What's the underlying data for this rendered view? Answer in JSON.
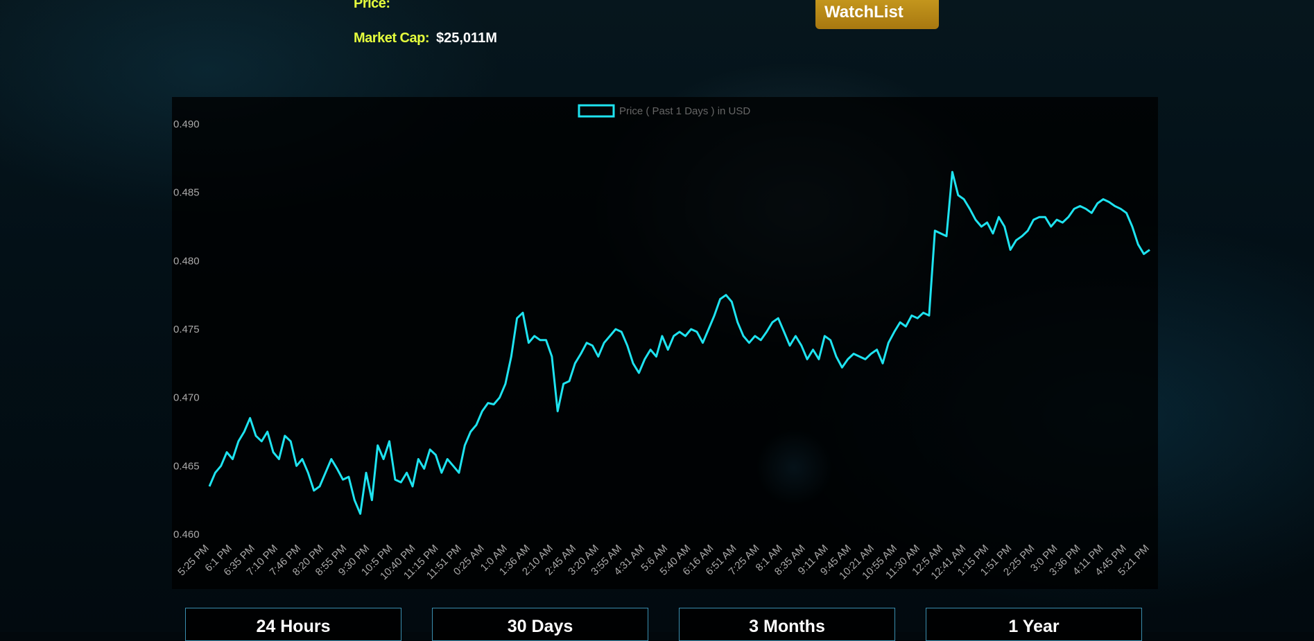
{
  "header": {
    "price_label": "Price:",
    "price_value": "",
    "market_cap_label": "Market Cap:",
    "market_cap_value": "$25,011M",
    "watchlist_label": "WatchList"
  },
  "range_buttons": [
    "24 Hours",
    "30 Days",
    "3 Months",
    "1 Year"
  ],
  "colors": {
    "line": "#1ee3f0",
    "label": "#e6ff3d",
    "button": "#b8860b"
  },
  "chart_data": {
    "type": "line",
    "legend": "Price ( Past 1 Days ) in USD",
    "legend_position": "top-center",
    "ylim": [
      0.46,
      0.49
    ],
    "yticks": [
      "0.490",
      "0.485",
      "0.480",
      "0.475",
      "0.470",
      "0.465",
      "0.460"
    ],
    "xticks": [
      "5:25 PM",
      "6:1 PM",
      "6:35 PM",
      "7:10 PM",
      "7:46 PM",
      "8:20 PM",
      "8:55 PM",
      "9:30 PM",
      "10:5 PM",
      "10:40 PM",
      "11:15 PM",
      "11:51 PM",
      "0:25 AM",
      "1:0 AM",
      "1:36 AM",
      "2:10 AM",
      "2:45 AM",
      "3:20 AM",
      "3:55 AM",
      "4:31 AM",
      "5:6 AM",
      "5:40 AM",
      "6:16 AM",
      "6:51 AM",
      "7:25 AM",
      "8:1 AM",
      "8:35 AM",
      "9:11 AM",
      "9:45 AM",
      "10:21 AM",
      "10:55 AM",
      "11:30 AM",
      "12:5 AM",
      "12:41 AM",
      "1:15 PM",
      "1:51 PM",
      "2:25 PM",
      "3:0 PM",
      "3:36 PM",
      "4:11 PM",
      "4:45 PM",
      "5:21 PM"
    ],
    "series": [
      {
        "values": [
          0.4635,
          0.4645,
          0.465,
          0.466,
          0.4655,
          0.4668,
          0.4675,
          0.4685,
          0.4672,
          0.4668,
          0.4675,
          0.466,
          0.4655,
          0.4672,
          0.4668,
          0.465,
          0.4655,
          0.4645,
          0.4632,
          0.4635,
          0.4645,
          0.4655,
          0.4648,
          0.464,
          0.4642,
          0.4625,
          0.4615,
          0.4645,
          0.4625,
          0.4665,
          0.4655,
          0.4668,
          0.464,
          0.4638,
          0.4645,
          0.4635,
          0.4655,
          0.4648,
          0.4662,
          0.4658,
          0.4645,
          0.4655,
          0.465,
          0.4645,
          0.4665,
          0.4675,
          0.468,
          0.469,
          0.4696,
          0.4695,
          0.47,
          0.471,
          0.473,
          0.4758,
          0.4762,
          0.474,
          0.4745,
          0.4742,
          0.4742,
          0.473,
          0.469,
          0.471,
          0.4712,
          0.4725,
          0.4732,
          0.474,
          0.4738,
          0.473,
          0.474,
          0.4745,
          0.475,
          0.4748,
          0.4738,
          0.4725,
          0.4718,
          0.4728,
          0.4735,
          0.473,
          0.4745,
          0.4735,
          0.4745,
          0.4748,
          0.4745,
          0.475,
          0.4748,
          0.474,
          0.475,
          0.476,
          0.4772,
          0.4775,
          0.477,
          0.4755,
          0.4745,
          0.474,
          0.4745,
          0.4742,
          0.4748,
          0.4755,
          0.4758,
          0.4748,
          0.4738,
          0.4745,
          0.4738,
          0.4728,
          0.4735,
          0.4728,
          0.4745,
          0.4742,
          0.473,
          0.4722,
          0.4728,
          0.4732,
          0.473,
          0.4728,
          0.4732,
          0.4735,
          0.4725,
          0.474,
          0.4748,
          0.4755,
          0.4752,
          0.476,
          0.4758,
          0.4762,
          0.476,
          0.4822,
          0.482,
          0.4818,
          0.4865,
          0.4848,
          0.4845,
          0.4838,
          0.483,
          0.4825,
          0.4828,
          0.482,
          0.4832,
          0.4825,
          0.4808,
          0.4815,
          0.4818,
          0.4822,
          0.483,
          0.4832,
          0.4832,
          0.4825,
          0.483,
          0.4828,
          0.4832,
          0.4838,
          0.484,
          0.4838,
          0.4835,
          0.4842,
          0.4845,
          0.4843,
          0.484,
          0.4838,
          0.4835,
          0.4825,
          0.4812,
          0.4805,
          0.4808
        ]
      }
    ]
  }
}
